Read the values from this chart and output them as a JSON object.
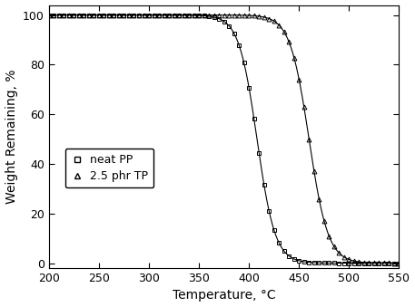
{
  "title": "",
  "xlabel": "Temperature, °C",
  "ylabel": "Weight Remaining, %",
  "xlim": [
    200,
    550
  ],
  "ylim": [
    -2,
    104
  ],
  "xticks": [
    200,
    250,
    300,
    350,
    400,
    450,
    500,
    550
  ],
  "yticks": [
    0,
    20,
    40,
    60,
    80,
    100
  ],
  "legend": [
    "neat PP",
    "2.5 phr TP"
  ],
  "marker_pp": "s",
  "marker_tp": "^",
  "marker_size": 3.5,
  "line_color": "#000000",
  "background_color": "#ffffff",
  "neat_pp": {
    "midpoint": 408,
    "steepness": 0.11,
    "x_start": 200,
    "x_end": 550,
    "x_step": 5
  },
  "tp_25": {
    "midpoint": 460,
    "steepness": 0.105,
    "x_start": 200,
    "x_end": 550,
    "x_step": 5
  },
  "figsize": [
    4.57,
    3.39
  ],
  "dpi": 100
}
